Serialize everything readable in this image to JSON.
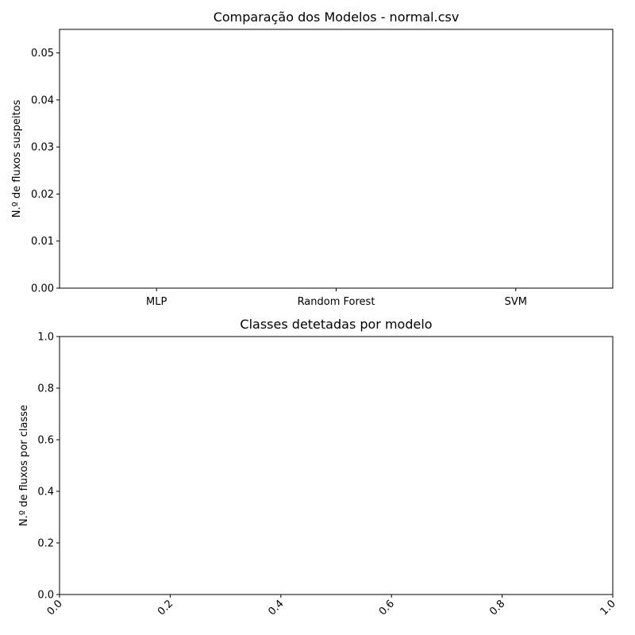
{
  "chart_data": [
    {
      "type": "bar",
      "title": "Comparação dos Modelos - normal.csv",
      "ylabel": "N.º de fluxos suspeitos",
      "categories": [
        "MLP",
        "Random Forest",
        "SVM"
      ],
      "values": [
        0,
        0,
        0
      ],
      "color": "#1f77b4",
      "ylim": [
        0,
        0.055
      ],
      "yticks": [
        {
          "value": 0,
          "label": "0.00"
        },
        {
          "value": 0.01,
          "label": "0.01"
        },
        {
          "value": 0.02,
          "label": "0.02"
        },
        {
          "value": 0.03,
          "label": "0.03"
        },
        {
          "value": 0.04,
          "label": "0.04"
        },
        {
          "value": 0.05,
          "label": "0.05"
        }
      ]
    },
    {
      "type": "line",
      "title": "Classes detetadas por modelo",
      "ylabel": "N.º de fluxos por classe",
      "xlim": [
        0,
        1
      ],
      "ylim": [
        0,
        1
      ],
      "xticks": [
        {
          "value": 0,
          "label": "0.0"
        },
        {
          "value": 0.2,
          "label": "0.2"
        },
        {
          "value": 0.4,
          "label": "0.4"
        },
        {
          "value": 0.6,
          "label": "0.6"
        },
        {
          "value": 0.8,
          "label": "0.8"
        },
        {
          "value": 1,
          "label": "1.0"
        }
      ],
      "yticks": [
        {
          "value": 0,
          "label": "0.0"
        },
        {
          "value": 0.2,
          "label": "0.2"
        },
        {
          "value": 0.4,
          "label": "0.4"
        },
        {
          "value": 0.6,
          "label": "0.6"
        },
        {
          "value": 0.8,
          "label": "0.8"
        },
        {
          "value": 1,
          "label": "1.0"
        }
      ]
    }
  ]
}
